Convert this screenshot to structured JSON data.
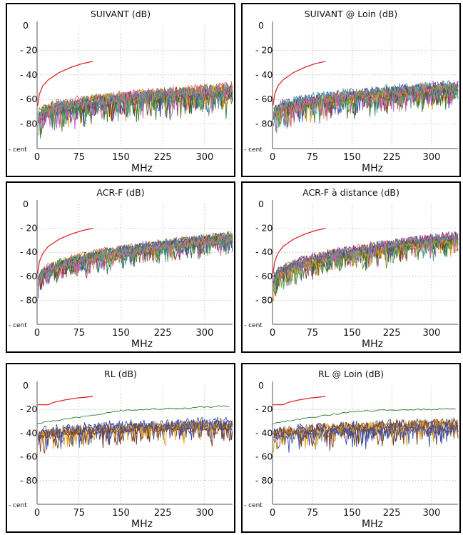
{
  "colors": {
    "limit": "#e0262a",
    "palette": [
      "#3a4fb0",
      "#2e7d32",
      "#7b3f1a",
      "#e0a020",
      "#c85ec0",
      "#4a9a9a",
      "#e06080",
      "#6a8a2a",
      "#9a2a8a",
      "#5aa05a"
    ]
  },
  "chart_data": [
    {
      "title": "SUIVANT (dB)",
      "type": "line",
      "xlabel": "MHz",
      "xlim": [
        0,
        350
      ],
      "ylim": [
        -100,
        0
      ],
      "x_ticks": [
        "0",
        "75",
        "150",
        "225",
        "300"
      ],
      "y_ticks": [
        "0",
        "- 20",
        "- 40",
        "- 60",
        "- 80",
        "- cent"
      ],
      "grid": true,
      "limit_line": {
        "x": [
          1,
          4,
          10,
          20,
          40,
          60,
          80,
          100
        ],
        "y": [
          -65,
          -56,
          -49,
          -44,
          -38,
          -34,
          -31,
          -29
        ]
      },
      "traces": {
        "count": 16,
        "start": -75,
        "end": -53,
        "noise": 9,
        "colors": [
          0,
          1,
          2,
          3,
          4,
          5,
          6,
          7,
          8,
          9
        ]
      }
    },
    {
      "title": "SUIVANT @ Loin (dB)",
      "type": "line",
      "xlabel": "MHz",
      "xlim": [
        0,
        350
      ],
      "ylim": [
        -100,
        0
      ],
      "x_ticks": [
        "0",
        "75",
        "150",
        "225",
        "300"
      ],
      "y_ticks": [
        "0",
        "- 20",
        "- 40",
        "- 60",
        "- 80",
        "- cent"
      ],
      "grid": true,
      "limit_line": {
        "x": [
          1,
          4,
          10,
          20,
          40,
          60,
          80,
          100
        ],
        "y": [
          -65,
          -56,
          -49,
          -44,
          -38,
          -34,
          -31,
          -29
        ]
      },
      "traces": {
        "count": 16,
        "start": -72,
        "end": -50,
        "noise": 8,
        "colors": [
          0,
          1,
          2,
          3,
          4,
          5,
          6,
          7,
          8,
          9
        ]
      }
    },
    {
      "title": "ACR-F (dB)",
      "type": "line",
      "xlabel": "MHz",
      "xlim": [
        0,
        350
      ],
      "ylim": [
        -100,
        0
      ],
      "x_ticks": [
        "0",
        "75",
        "150",
        "225",
        "300"
      ],
      "y_ticks": [
        "0",
        "- 20",
        "- 40",
        "- 60",
        "- 80",
        "- cent"
      ],
      "grid": true,
      "limit_line": {
        "x": [
          1,
          4,
          10,
          20,
          40,
          60,
          80,
          100
        ],
        "y": [
          -58,
          -48,
          -41,
          -35,
          -29,
          -25,
          -22,
          -20
        ]
      },
      "traces": {
        "count": 16,
        "start": -65,
        "end": -28,
        "noise": 7,
        "colors": [
          0,
          1,
          2,
          3,
          4,
          5,
          6,
          7,
          8,
          9
        ]
      }
    },
    {
      "title": "ACR-F à distance (dB)",
      "type": "line",
      "xlabel": "MHz",
      "xlim": [
        0,
        350
      ],
      "ylim": [
        -100,
        0
      ],
      "x_ticks": [
        "0",
        "75",
        "150",
        "225",
        "300"
      ],
      "y_ticks": [
        "0",
        "- 20",
        "- 40",
        "- 60",
        "- 80",
        "- cent"
      ],
      "grid": true,
      "limit_line": {
        "x": [
          1,
          4,
          10,
          20,
          40,
          60,
          80,
          100
        ],
        "y": [
          -58,
          -48,
          -41,
          -35,
          -29,
          -25,
          -22,
          -20
        ]
      },
      "traces": {
        "count": 16,
        "start": -65,
        "end": -28,
        "noise": 7,
        "colors": [
          0,
          1,
          2,
          3,
          4,
          5,
          6,
          7,
          8,
          9
        ]
      }
    },
    {
      "title": "RL (dB)",
      "type": "line",
      "xlabel": "MHz",
      "xlim": [
        0,
        350
      ],
      "ylim": [
        -100,
        0
      ],
      "x_ticks": [
        "0",
        "75",
        "150",
        "225",
        "300"
      ],
      "y_ticks": [
        "0",
        "- 20",
        "- 40",
        "- 60",
        "- 80",
        "- cent"
      ],
      "grid": true,
      "limit_line": {
        "x": [
          1,
          20,
          30,
          50,
          70,
          90,
          100
        ],
        "y": [
          -16,
          -16,
          -14,
          -12,
          -10.5,
          -9.5,
          -9
        ]
      },
      "traces": {
        "count": 8,
        "start": -42,
        "end": -32,
        "noise": 8,
        "colors": [
          0,
          2,
          3,
          2,
          0,
          3,
          2,
          0
        ]
      },
      "upper_trace": {
        "x": [
          0,
          40,
          100,
          150,
          200,
          250,
          300,
          350
        ],
        "y": [
          -32,
          -29,
          -25,
          -21,
          -20,
          -19,
          -18,
          -17
        ]
      }
    },
    {
      "title": "RL @ Loin (dB)",
      "type": "line",
      "xlabel": "MHz",
      "xlim": [
        0,
        350
      ],
      "ylim": [
        -100,
        0
      ],
      "x_ticks": [
        "0",
        "75",
        "150",
        "225",
        "300"
      ],
      "y_ticks": [
        "0",
        "- 20",
        "- 40",
        "- 60",
        "- 80",
        "- cent"
      ],
      "grid": true,
      "limit_line": {
        "x": [
          1,
          20,
          30,
          50,
          70,
          90,
          100
        ],
        "y": [
          -16,
          -16,
          -14,
          -12,
          -10.5,
          -9.5,
          -9
        ]
      },
      "traces": {
        "count": 8,
        "start": -42,
        "end": -33,
        "noise": 8,
        "colors": [
          0,
          2,
          3,
          2,
          0,
          3,
          2,
          0
        ]
      },
      "upper_trace": {
        "x": [
          0,
          40,
          100,
          150,
          200,
          250,
          300,
          350
        ],
        "y": [
          -32,
          -29,
          -25,
          -22,
          -21,
          -20,
          -20,
          -19
        ]
      }
    }
  ]
}
